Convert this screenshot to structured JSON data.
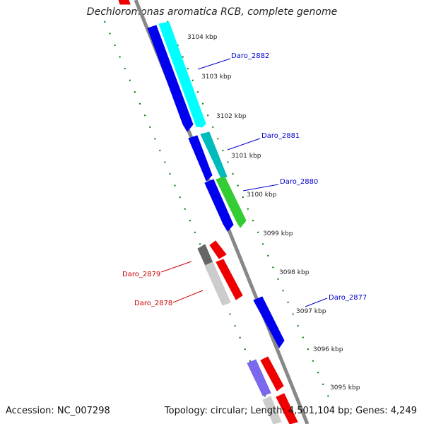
{
  "title": "Dechloromonas aromatica RCB, complete genome",
  "footer": {
    "accession": "Accession: NC_007298",
    "summary": "Topology: circular; Length: 4,501,104 bp; Genes: 4,249"
  },
  "colors": {
    "backbone": "#808080",
    "ticks": "#007a00",
    "forward_label": "#0000cc",
    "reverse_label": "#cc0000"
  },
  "scale": {
    "unit": "kbp",
    "ticks": [
      "3104 kbp",
      "3103 kbp",
      "3102 kbp",
      "3101 kbp",
      "3100 kbp",
      "3099 kbp",
      "3098 kbp",
      "3097 kbp",
      "3096 kbp",
      "3095 kbp"
    ]
  },
  "labels": {
    "daro_2882": "Daro_2882",
    "daro_2881": "Daro_2881",
    "daro_2880": "Daro_2880",
    "daro_2879": "Daro_2879",
    "daro_2878": "Daro_2878",
    "daro_2877": "Daro_2877"
  },
  "genes": [
    {
      "id": "top-red-gene",
      "color": "#ee0000"
    },
    {
      "id": "forward-gene-a",
      "color": "#0000ee"
    },
    {
      "id": "daro_2882",
      "color": "#00ffff"
    },
    {
      "id": "forward-gene-b",
      "color": "#0000ee"
    },
    {
      "id": "daro_2881",
      "color": "#00bbbb"
    },
    {
      "id": "forward-gene-c",
      "color": "#0000ee"
    },
    {
      "id": "daro_2880",
      "color": "#33cc33"
    },
    {
      "id": "daro_2879",
      "color": "#666666"
    },
    {
      "id": "reverse-red-a",
      "color": "#ee0000"
    },
    {
      "id": "daro_2878",
      "color": "#cccccc"
    },
    {
      "id": "reverse-red-b",
      "color": "#ee0000"
    },
    {
      "id": "daro_2877",
      "color": "#0000ee"
    },
    {
      "id": "lavender-gene",
      "color": "#7b68ee"
    },
    {
      "id": "reverse-red-c",
      "color": "#ee0000"
    },
    {
      "id": "bottom-gray-gene",
      "color": "#cccccc"
    },
    {
      "id": "bottom-red-gene",
      "color": "#ee0000"
    }
  ]
}
